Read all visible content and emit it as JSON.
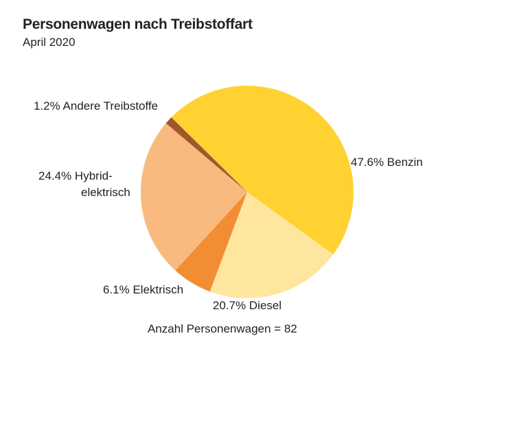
{
  "chart_data": {
    "type": "pie",
    "title": "Personenwagen nach Treibstoffart",
    "subtitle": "April 2020",
    "slices": [
      {
        "name": "Benzin",
        "label": "47.6%  Benzin",
        "value": 47.6,
        "color": "#FFD232"
      },
      {
        "name": "Diesel",
        "label": "20.7%  Diesel",
        "value": 20.7,
        "color": "#FFE69F"
      },
      {
        "name": "Elektrisch",
        "label": "6.1%  Elektrisch",
        "value": 6.1,
        "color": "#F28D34"
      },
      {
        "name": "Hybrid-elektrisch",
        "label_line1": "24.4% Hybrid-",
        "label_line2": "elektrisch",
        "value": 24.4,
        "color": "#F9BA7F"
      },
      {
        "name": "Andere Treibstoffe",
        "label": "1.2% Andere Treibstoffe",
        "value": 1.2,
        "color": "#A0582A"
      }
    ],
    "start_angle_deg": 314.6,
    "footnote": "Anzahl Personenwagen = 82"
  }
}
